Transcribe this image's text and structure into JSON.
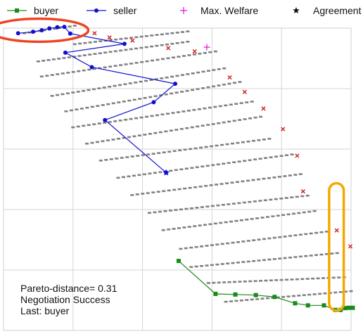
{
  "chart_data": {
    "type": "scatter",
    "title": "",
    "xlabel": "",
    "ylabel": "",
    "xlim": [
      0,
      1
    ],
    "ylim": [
      0,
      1
    ],
    "grid": true,
    "legend_placement": "top",
    "legend": [
      {
        "label": "buyer",
        "color": "#1a8a1a",
        "marker": "square",
        "line": true
      },
      {
        "label": "seller",
        "color": "#1010d0",
        "marker": "circle",
        "line": true
      },
      {
        "label": "Max. Welfare",
        "color": "#e020e0",
        "marker": "plus",
        "line": false
      },
      {
        "label": "Agreement",
        "color": "#111111",
        "marker": "star",
        "line": false
      }
    ],
    "series": [
      {
        "name": "seller",
        "color": "#1010d0",
        "points": [
          [
            0.042,
            0.983
          ],
          [
            0.085,
            0.988
          ],
          [
            0.11,
            0.993
          ],
          [
            0.132,
            0.999
          ],
          [
            0.155,
            1.003
          ],
          [
            0.175,
            1.004
          ],
          [
            0.192,
            0.982
          ],
          [
            0.348,
            0.948
          ],
          [
            0.178,
            0.919
          ],
          [
            0.254,
            0.871
          ],
          [
            0.494,
            0.816
          ],
          [
            0.432,
            0.755
          ],
          [
            0.292,
            0.696
          ],
          [
            0.468,
            0.522
          ]
        ]
      },
      {
        "name": "buyer",
        "color": "#1a8a1a",
        "points": [
          [
            0.504,
            0.23
          ],
          [
            0.61,
            0.121
          ],
          [
            0.667,
            0.119
          ],
          [
            0.726,
            0.117
          ],
          [
            0.78,
            0.111
          ],
          [
            0.839,
            0.09
          ],
          [
            0.876,
            0.083
          ],
          [
            0.922,
            0.083
          ],
          [
            0.955,
            0.068
          ],
          [
            0.97,
            0.068
          ],
          [
            0.983,
            0.074
          ],
          [
            0.993,
            0.075
          ],
          [
            1.005,
            0.075
          ]
        ]
      }
    ],
    "max_welfare": [
      0.585,
      0.937
    ],
    "agreement": [
      0.468,
      0.522
    ],
    "outcome_points": {
      "color": "#808080",
      "rows": [
        {
          "x0": 0.06,
          "y0": 0.983,
          "x1": 0.205,
          "y1": 1.008
        },
        {
          "x0": 0.205,
          "y0": 0.947,
          "x1": 0.53,
          "y1": 0.989
        },
        {
          "x0": 0.1,
          "y0": 0.89,
          "x1": 0.53,
          "y1": 0.955
        },
        {
          "x0": 0.11,
          "y0": 0.84,
          "x1": 0.61,
          "y1": 0.923
        },
        {
          "x0": 0.14,
          "y0": 0.776,
          "x1": 0.635,
          "y1": 0.867
        },
        {
          "x0": 0.18,
          "y0": 0.725,
          "x1": 0.68,
          "y1": 0.822
        },
        {
          "x0": 0.2,
          "y0": 0.672,
          "x1": 0.715,
          "y1": 0.757
        },
        {
          "x0": 0.24,
          "y0": 0.618,
          "x1": 0.74,
          "y1": 0.707
        },
        {
          "x0": 0.28,
          "y0": 0.562,
          "x1": 0.765,
          "y1": 0.634
        },
        {
          "x0": 0.33,
          "y0": 0.505,
          "x1": 0.83,
          "y1": 0.582
        },
        {
          "x0": 0.37,
          "y0": 0.448,
          "x1": 0.855,
          "y1": 0.517
        },
        {
          "x0": 0.42,
          "y0": 0.389,
          "x1": 0.875,
          "y1": 0.446
        },
        {
          "x0": 0.46,
          "y0": 0.332,
          "x1": 0.895,
          "y1": 0.395
        },
        {
          "x0": 0.51,
          "y0": 0.27,
          "x1": 0.93,
          "y1": 0.327
        },
        {
          "x0": 0.54,
          "y0": 0.21,
          "x1": 0.96,
          "y1": 0.256
        },
        {
          "x0": 0.59,
          "y0": 0.157,
          "x1": 0.98,
          "y1": 0.176
        },
        {
          "x0": 0.64,
          "y0": 0.095,
          "x1": 1.0,
          "y1": 0.13
        }
      ]
    },
    "rejected_offers": {
      "color": "#cc1f1f",
      "points": [
        [
          0.262,
          0.983
        ],
        [
          0.305,
          0.969
        ],
        [
          0.371,
          0.959
        ],
        [
          0.474,
          0.934
        ],
        [
          0.55,
          0.923
        ],
        [
          0.651,
          0.837
        ],
        [
          0.694,
          0.789
        ],
        [
          0.748,
          0.734
        ],
        [
          0.804,
          0.666
        ],
        [
          0.845,
          0.578
        ],
        [
          0.862,
          0.46
        ],
        [
          0.959,
          0.331
        ],
        [
          0.998,
          0.278
        ]
      ]
    },
    "highlights": [
      {
        "shape": "ellipse",
        "color": "#ee4422",
        "center": [
          0.102,
          0.993
        ],
        "radii": [
          0.142,
          0.038
        ]
      },
      {
        "shape": "capsule",
        "color": "#f5a800",
        "x_range": [
          0.937,
          0.979
        ],
        "y_range": [
          0.066,
          0.487
        ]
      }
    ],
    "annotations": [
      "Pareto-distance= 0.31",
      "Negotiation Success",
      "Last: buyer"
    ]
  }
}
